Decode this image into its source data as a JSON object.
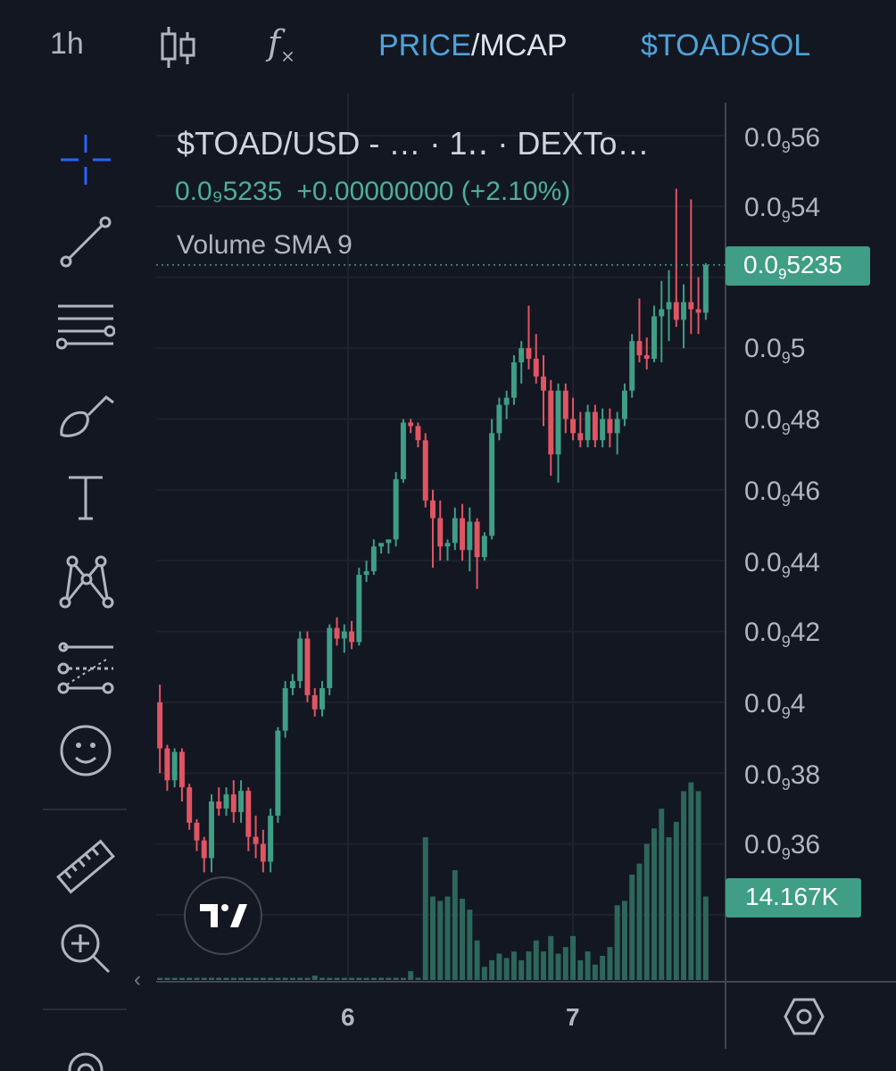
{
  "toolbar": {
    "interval": "1h",
    "price_label": "PRICE",
    "separator": "/",
    "mcap_label": "MCAP",
    "pair_label": "$TOAD/SOL",
    "icons": [
      "candles-icon",
      "indicators-fx-icon"
    ]
  },
  "sidebar": {
    "tools": [
      "crosshair-icon",
      "trend-line-icon",
      "fib-levels-icon",
      "brush-icon",
      "text-icon",
      "pattern-icon",
      "prediction-icon",
      "emoji-icon",
      "ruler-icon",
      "zoom-in-icon",
      "magnet-icon"
    ]
  },
  "legend": {
    "title": "$TOAD/USD - …   · 1‥ · DEXTo…",
    "price": "0.0₉5235",
    "change": "+0.00000000 (+2.10%)",
    "volume_indicator": "Volume SMA 9"
  },
  "price_axis": {
    "labels": [
      {
        "base": "0.0",
        "sub": "9",
        "tail": "56"
      },
      {
        "base": "0.0",
        "sub": "9",
        "tail": "54"
      },
      {
        "base": "0.0",
        "sub": "9",
        "tail": "5"
      },
      {
        "base": "0.0",
        "sub": "9",
        "tail": "48"
      },
      {
        "base": "0.0",
        "sub": "9",
        "tail": "46"
      },
      {
        "base": "0.0",
        "sub": "9",
        "tail": "44"
      },
      {
        "base": "0.0",
        "sub": "9",
        "tail": "42"
      },
      {
        "base": "0.0",
        "sub": "9",
        "tail": "4"
      },
      {
        "base": "0.0",
        "sub": "9",
        "tail": "38"
      },
      {
        "base": "0.0",
        "sub": "9",
        "tail": "36"
      }
    ],
    "current_price_tag": {
      "base": "0.0",
      "sub": "9",
      "tail": "5235"
    },
    "volume_tag": "14.167K"
  },
  "time_axis": {
    "labels": [
      "6",
      "7"
    ]
  },
  "colors": {
    "up": "#3f9e85",
    "down": "#e05563",
    "background": "#131722",
    "accent": "#4fa3d9"
  },
  "chart_data": {
    "type": "candlestick",
    "y_unit": "0.0₉ (price ×1e-10)",
    "ylim": [
      0.34,
      0.56
    ],
    "candles": [
      [
        0.4,
        0.405,
        0.38,
        0.387
      ],
      [
        0.387,
        0.388,
        0.375,
        0.378
      ],
      [
        0.378,
        0.387,
        0.376,
        0.386
      ],
      [
        0.386,
        0.387,
        0.372,
        0.376
      ],
      [
        0.376,
        0.377,
        0.364,
        0.366
      ],
      [
        0.366,
        0.367,
        0.358,
        0.361
      ],
      [
        0.361,
        0.362,
        0.352,
        0.356
      ],
      [
        0.356,
        0.374,
        0.352,
        0.372
      ],
      [
        0.372,
        0.376,
        0.368,
        0.37
      ],
      [
        0.37,
        0.376,
        0.368,
        0.374
      ],
      [
        0.374,
        0.378,
        0.366,
        0.369
      ],
      [
        0.369,
        0.378,
        0.366,
        0.375
      ],
      [
        0.375,
        0.376,
        0.358,
        0.362
      ],
      [
        0.362,
        0.368,
        0.356,
        0.36
      ],
      [
        0.36,
        0.364,
        0.352,
        0.355
      ],
      [
        0.355,
        0.37,
        0.352,
        0.368
      ],
      [
        0.368,
        0.393,
        0.366,
        0.392
      ],
      [
        0.392,
        0.406,
        0.39,
        0.404
      ],
      [
        0.404,
        0.408,
        0.402,
        0.406
      ],
      [
        0.406,
        0.42,
        0.404,
        0.418
      ],
      [
        0.418,
        0.42,
        0.4,
        0.402
      ],
      [
        0.402,
        0.404,
        0.396,
        0.398
      ],
      [
        0.398,
        0.406,
        0.396,
        0.404
      ],
      [
        0.404,
        0.422,
        0.402,
        0.421
      ],
      [
        0.421,
        0.424,
        0.416,
        0.418
      ],
      [
        0.418,
        0.422,
        0.414,
        0.42
      ],
      [
        0.42,
        0.423,
        0.415,
        0.417
      ],
      [
        0.417,
        0.438,
        0.416,
        0.436
      ],
      [
        0.436,
        0.44,
        0.434,
        0.437
      ],
      [
        0.437,
        0.446,
        0.436,
        0.444
      ],
      [
        0.444,
        0.445,
        0.442,
        0.445
      ],
      [
        0.445,
        0.446,
        0.442,
        0.446
      ],
      [
        0.446,
        0.465,
        0.444,
        0.463
      ],
      [
        0.463,
        0.48,
        0.462,
        0.479
      ],
      [
        0.479,
        0.48,
        0.476,
        0.478
      ],
      [
        0.478,
        0.479,
        0.472,
        0.474
      ],
      [
        0.474,
        0.476,
        0.455,
        0.457
      ],
      [
        0.457,
        0.46,
        0.438,
        0.452
      ],
      [
        0.452,
        0.457,
        0.44,
        0.444
      ],
      [
        0.444,
        0.446,
        0.44,
        0.445
      ],
      [
        0.445,
        0.455,
        0.443,
        0.452
      ],
      [
        0.452,
        0.456,
        0.44,
        0.443
      ],
      [
        0.443,
        0.455,
        0.437,
        0.451
      ],
      [
        0.451,
        0.452,
        0.432,
        0.441
      ],
      [
        0.441,
        0.448,
        0.44,
        0.447
      ],
      [
        0.447,
        0.48,
        0.446,
        0.476
      ],
      [
        0.476,
        0.486,
        0.474,
        0.484
      ],
      [
        0.484,
        0.488,
        0.48,
        0.486
      ],
      [
        0.486,
        0.498,
        0.484,
        0.496
      ],
      [
        0.496,
        0.502,
        0.49,
        0.5
      ],
      [
        0.5,
        0.512,
        0.494,
        0.497
      ],
      [
        0.497,
        0.504,
        0.49,
        0.492
      ],
      [
        0.492,
        0.498,
        0.478,
        0.488
      ],
      [
        0.488,
        0.491,
        0.464,
        0.47
      ],
      [
        0.47,
        0.49,
        0.462,
        0.488
      ],
      [
        0.488,
        0.49,
        0.476,
        0.48
      ],
      [
        0.48,
        0.486,
        0.474,
        0.476
      ],
      [
        0.476,
        0.482,
        0.472,
        0.474
      ],
      [
        0.474,
        0.484,
        0.472,
        0.482
      ],
      [
        0.482,
        0.484,
        0.472,
        0.474
      ],
      [
        0.474,
        0.483,
        0.472,
        0.48
      ],
      [
        0.48,
        0.483,
        0.472,
        0.476
      ],
      [
        0.476,
        0.482,
        0.47,
        0.48
      ],
      [
        0.48,
        0.49,
        0.478,
        0.488
      ],
      [
        0.488,
        0.504,
        0.486,
        0.502
      ],
      [
        0.502,
        0.514,
        0.496,
        0.498
      ],
      [
        0.498,
        0.503,
        0.494,
        0.497
      ],
      [
        0.497,
        0.512,
        0.496,
        0.509
      ],
      [
        0.509,
        0.519,
        0.496,
        0.511
      ],
      [
        0.511,
        0.522,
        0.502,
        0.513
      ],
      [
        0.513,
        0.545,
        0.506,
        0.508
      ],
      [
        0.508,
        0.518,
        0.5,
        0.513
      ],
      [
        0.513,
        0.542,
        0.504,
        0.511
      ],
      [
        0.511,
        0.52,
        0.504,
        0.51
      ],
      [
        0.51,
        0.524,
        0.508,
        0.5235
      ]
    ],
    "volume": [
      0.01,
      0.01,
      0.01,
      0.01,
      0.01,
      0.01,
      0.01,
      0.01,
      0.01,
      0.01,
      0.01,
      0.01,
      0.01,
      0.01,
      0.01,
      0.01,
      0.01,
      0.01,
      0.01,
      0.01,
      0.01,
      0.02,
      0.01,
      0.01,
      0.01,
      0.01,
      0.01,
      0.01,
      0.01,
      0.01,
      0.01,
      0.01,
      0.01,
      0.01,
      0.04,
      0.01,
      0.65,
      0.38,
      0.36,
      0.38,
      0.5,
      0.37,
      0.32,
      0.18,
      0.06,
      0.09,
      0.12,
      0.1,
      0.13,
      0.09,
      0.13,
      0.18,
      0.13,
      0.2,
      0.12,
      0.15,
      0.2,
      0.09,
      0.13,
      0.07,
      0.11,
      0.15,
      0.34,
      0.36,
      0.48,
      0.53,
      0.62,
      0.69,
      0.78,
      0.65,
      0.72,
      0.86,
      0.9,
      0.86,
      0.38
    ]
  }
}
